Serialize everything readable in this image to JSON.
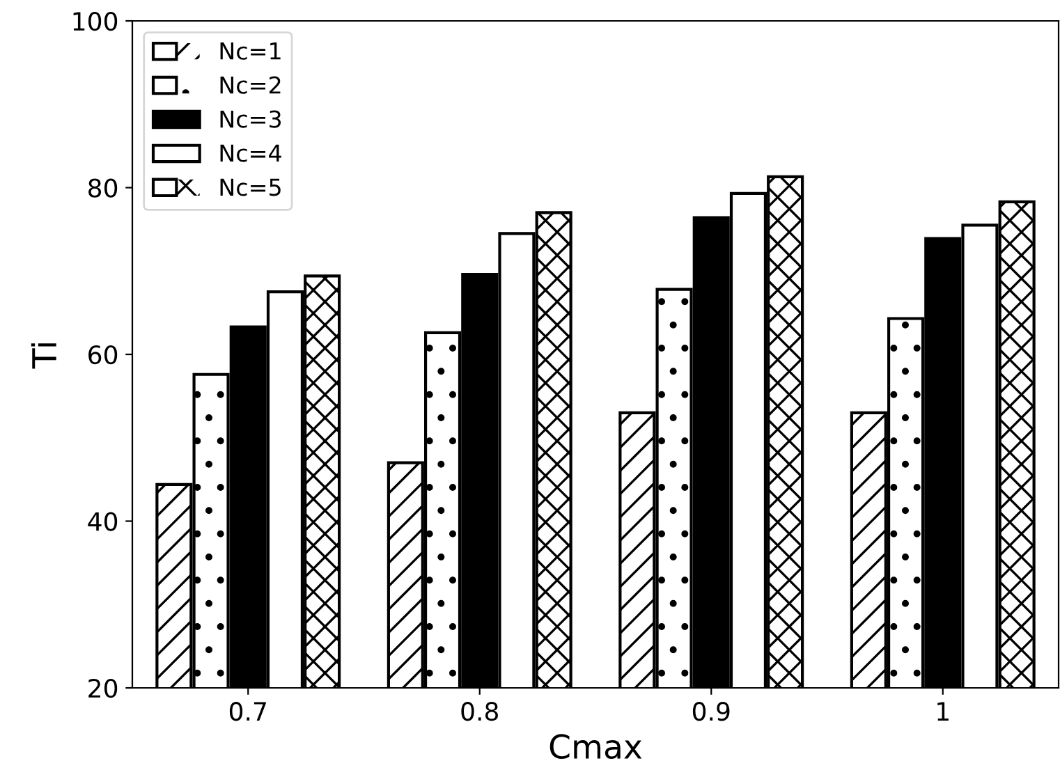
{
  "chart_data": {
    "type": "bar",
    "xlabel": "Cmax",
    "ylabel": "Ti",
    "categories": [
      "0.7",
      "0.8",
      "0.9",
      "1"
    ],
    "series": [
      {
        "name": "Nc=1",
        "color": "#ffffff",
        "values": [
          44.4,
          47.0,
          53.0,
          53.0
        ]
      },
      {
        "name": "Nc=2",
        "color": "#ffffff",
        "values": [
          57.6,
          62.6,
          67.8,
          64.3
        ]
      },
      {
        "name": "Nc=3",
        "color": "#000000",
        "values": [
          63.3,
          69.6,
          76.4,
          73.9
        ]
      },
      {
        "name": "Nc=4",
        "color": "#ffffff",
        "values": [
          67.5,
          74.5,
          79.3,
          75.5
        ]
      },
      {
        "name": "Nc=5",
        "color": "#ffffff",
        "values": [
          69.4,
          77.0,
          81.3,
          78.3
        ]
      }
    ],
    "ylim": [
      20,
      100
    ],
    "yticks": [
      20,
      40,
      60,
      80,
      100
    ],
    "grid": false,
    "legend": "top left"
  }
}
